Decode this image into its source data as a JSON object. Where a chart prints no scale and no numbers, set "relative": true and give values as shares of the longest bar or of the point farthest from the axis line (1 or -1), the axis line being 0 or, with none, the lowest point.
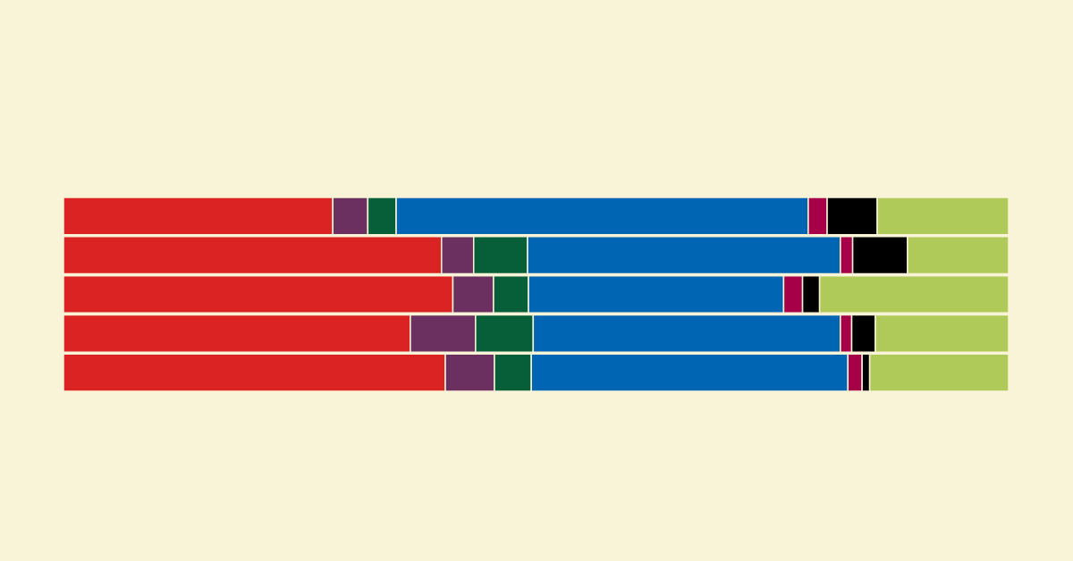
{
  "chart_data": {
    "type": "bar",
    "orientation": "horizontal",
    "stacked": true,
    "relative": true,
    "categories": [
      null,
      null,
      null,
      null,
      null
    ],
    "series": [
      {
        "color": "#dc2323",
        "values": [
          0.285,
          0.4,
          0.412,
          0.367,
          0.404
        ]
      },
      {
        "color": "#6b3060",
        "values": [
          0.037,
          0.034,
          0.043,
          0.069,
          0.052
        ]
      },
      {
        "color": "#075f3a",
        "values": [
          0.03,
          0.057,
          0.037,
          0.061,
          0.039
        ]
      },
      {
        "color": "#0066b3",
        "values": [
          0.436,
          0.331,
          0.27,
          0.325,
          0.335
        ]
      },
      {
        "color": "#a50048",
        "values": [
          0.02,
          0.013,
          0.02,
          0.012,
          0.015
        ]
      },
      {
        "color": "#000000",
        "values": [
          0.053,
          0.058,
          0.018,
          0.025,
          0.008
        ]
      },
      {
        "color": "#b0ca5a",
        "values": [
          0.139,
          0.107,
          0.2,
          0.141,
          0.147
        ]
      }
    ]
  }
}
